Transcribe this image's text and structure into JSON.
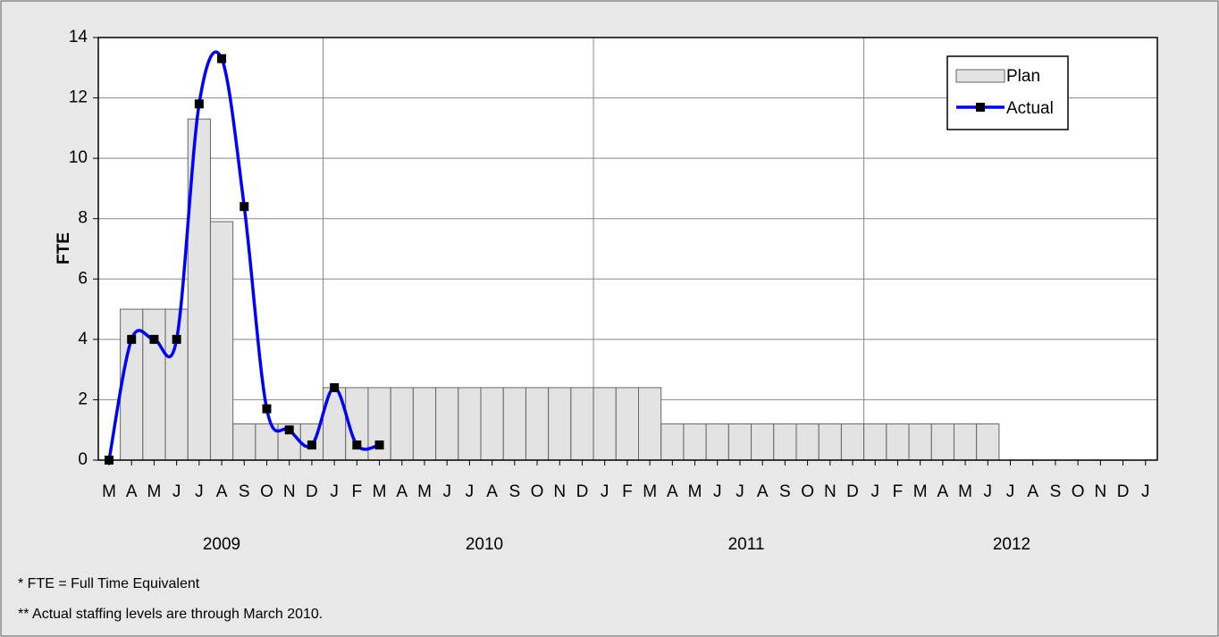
{
  "chart_data": {
    "type": "bar-line",
    "y_label": "FTE",
    "categories": [
      "M",
      "A",
      "M",
      "J",
      "J",
      "A",
      "S",
      "O",
      "N",
      "D",
      "J",
      "F",
      "M",
      "A",
      "M",
      "J",
      "J",
      "A",
      "S",
      "O",
      "N",
      "D",
      "J",
      "F",
      "M",
      "A",
      "M",
      "J",
      "J",
      "A",
      "S",
      "O",
      "N",
      "D",
      "J",
      "F",
      "M",
      "A",
      "M",
      "J",
      "J",
      "A",
      "S",
      "O",
      "N",
      "D",
      "J"
    ],
    "year_labels": [
      "2009",
      "2010",
      "2011",
      "2012"
    ],
    "series": [
      {
        "name": "Plan",
        "kind": "bar",
        "color": "#e3e3e3",
        "values": [
          0,
          5,
          5,
          5,
          11.3,
          7.9,
          1.2,
          1.2,
          1.2,
          1.2,
          2.4,
          2.4,
          2.4,
          2.4,
          2.4,
          2.4,
          2.4,
          2.4,
          2.4,
          2.4,
          2.4,
          2.4,
          2.4,
          2.4,
          2.4,
          1.2,
          1.2,
          1.2,
          1.2,
          1.2,
          1.2,
          1.2,
          1.2,
          1.2,
          1.2,
          1.2,
          1.2,
          1.2,
          1.2,
          1.2,
          0,
          0,
          0,
          0,
          0,
          0,
          0
        ]
      },
      {
        "name": "Actual",
        "kind": "line",
        "color": "#0000ff",
        "values": [
          0,
          4,
          4,
          4,
          11.8,
          13.3,
          8.4,
          1.7,
          1.0,
          0.5,
          2.4,
          0.5,
          0.5,
          null,
          null,
          null,
          null,
          null,
          null,
          null,
          null,
          null,
          null,
          null,
          null,
          null,
          null,
          null,
          null,
          null,
          null,
          null,
          null,
          null,
          null,
          null,
          null,
          null,
          null,
          null,
          null,
          null,
          null,
          null,
          null,
          null,
          null
        ]
      }
    ],
    "ylim": [
      0,
      14
    ],
    "yticks": [
      0,
      2,
      4,
      6,
      8,
      10,
      12,
      14
    ],
    "grid": true,
    "legend": "upper right",
    "footnotes": [
      "*  FTE = Full Time Equivalent",
      "**  Actual staffing levels are through March 2010."
    ]
  }
}
